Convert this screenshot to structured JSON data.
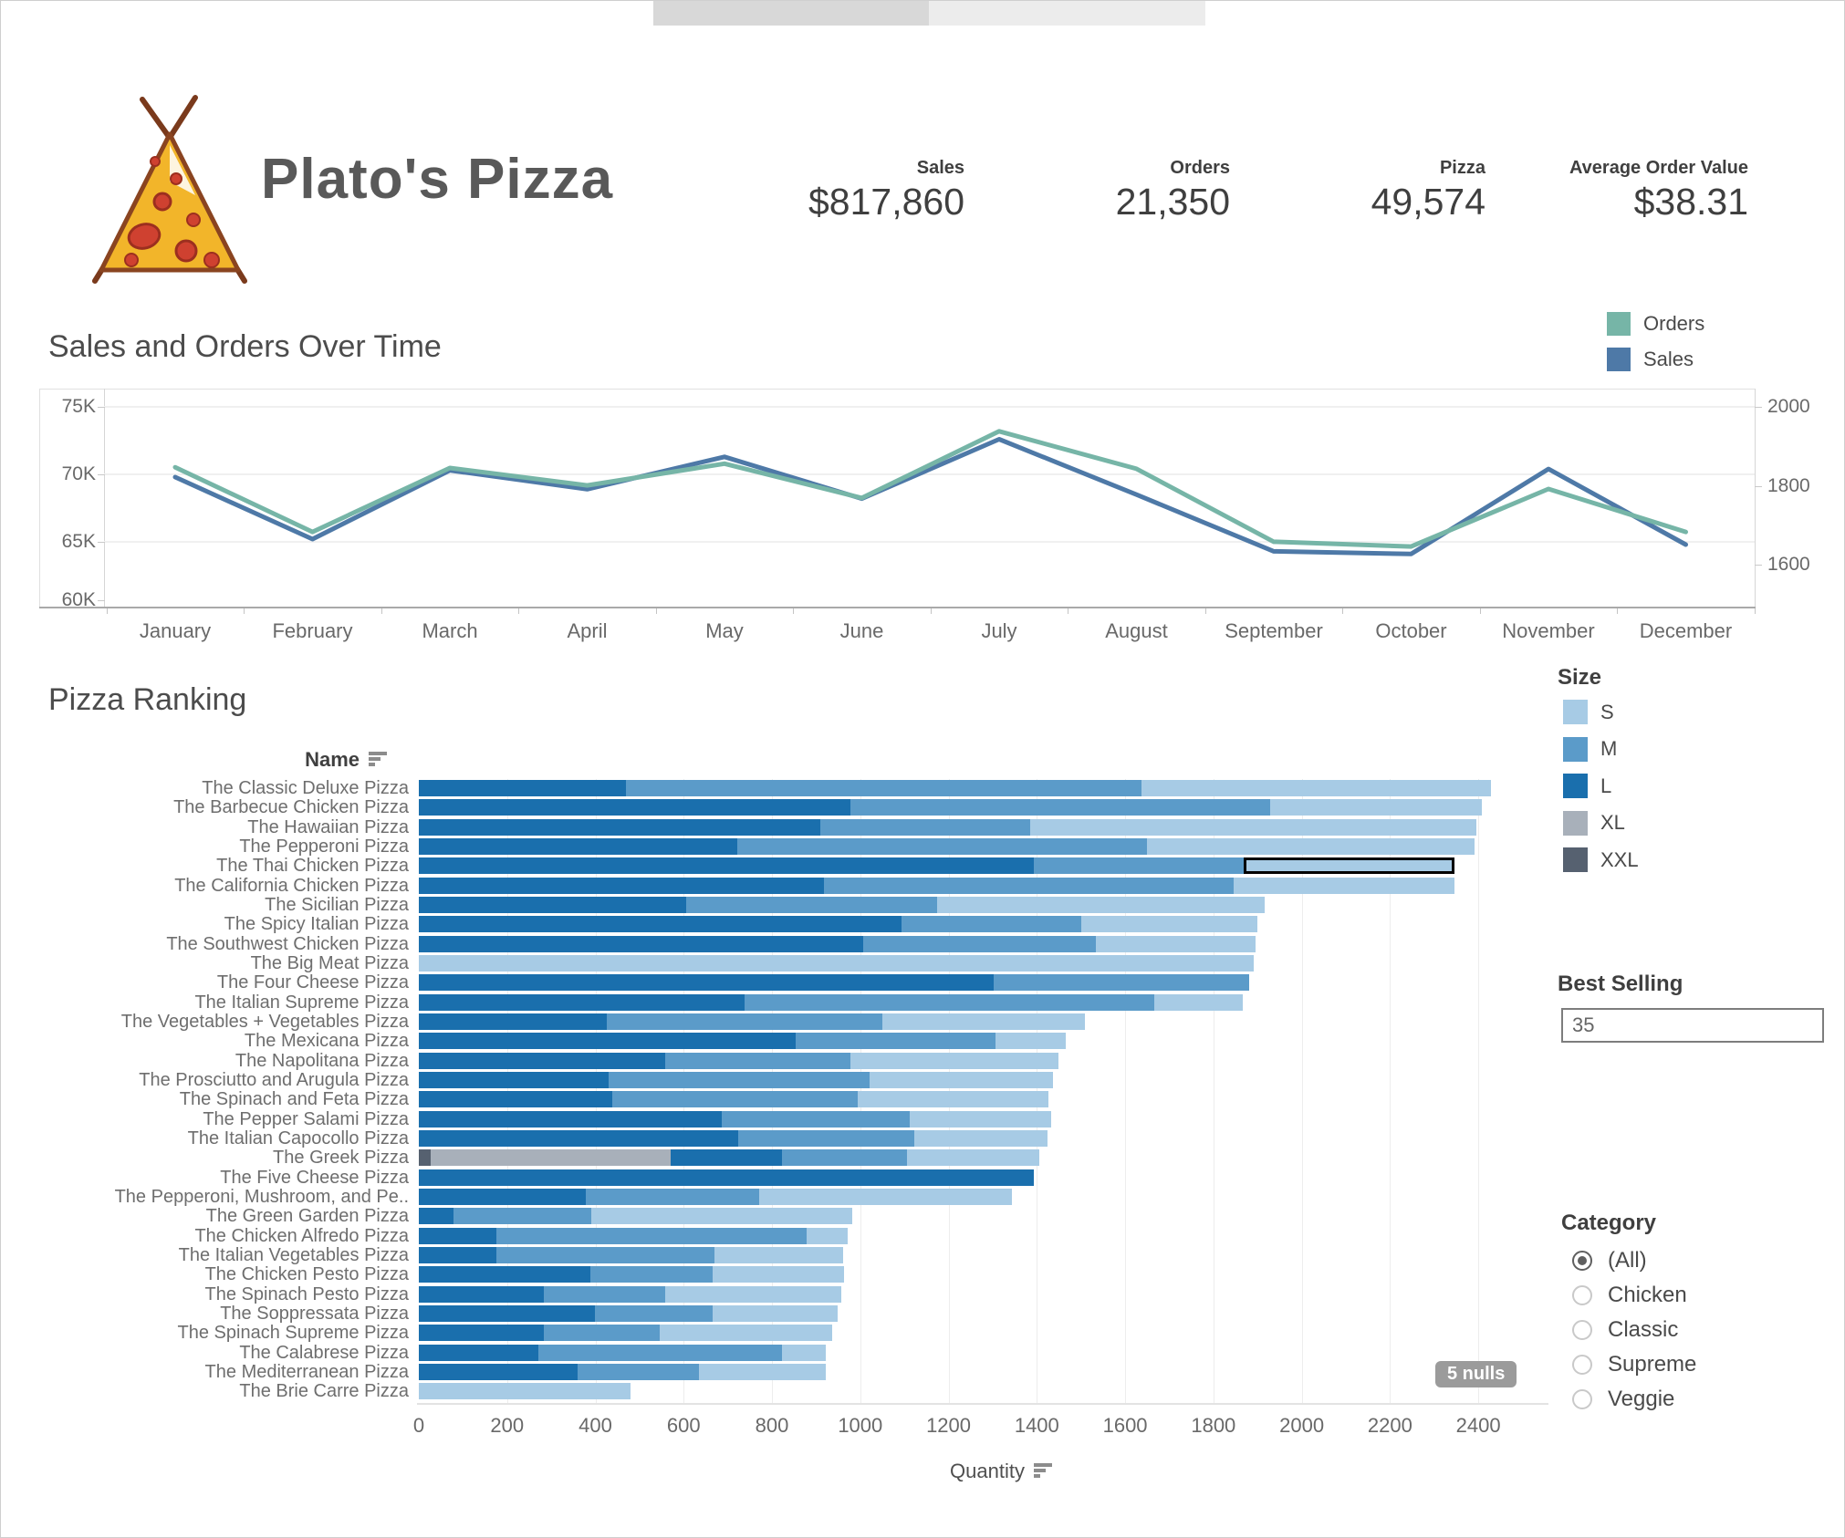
{
  "colors": {
    "size_S": "#a7cbe5",
    "size_M": "#5b9bc9",
    "size_L": "#1a6fad",
    "size_XL": "#a8b0ba",
    "size_XXL": "#566170",
    "orders_line": "#76b5a7",
    "sales_line": "#4e79a7",
    "highlight_border": "#000000",
    "badge_bg": "#9b9b9b"
  },
  "header": {
    "title": "Plato's Pizza",
    "kpis": [
      {
        "label": "Sales",
        "value": "$817,860"
      },
      {
        "label": "Orders",
        "value": "21,350"
      },
      {
        "label": "Pizza",
        "value": "49,574"
      },
      {
        "label": "Average Order Value",
        "value": "$38.31"
      }
    ]
  },
  "line_legend": [
    {
      "label": "Orders",
      "color": "#76b5a7"
    },
    {
      "label": "Sales",
      "color": "#4e79a7"
    }
  ],
  "ranking": {
    "title": "Pizza Ranking",
    "name_header": "Name",
    "xlabel": "Quantity",
    "nulls_badge": "5 nulls"
  },
  "filters": {
    "best_selling": {
      "label": "Best Selling",
      "value": "35"
    },
    "category": {
      "label": "Category",
      "options": [
        "(All)",
        "Chicken",
        "Classic",
        "Supreme",
        "Veggie"
      ],
      "selected": "(All)"
    },
    "size_legend": {
      "label": "Size",
      "items": [
        {
          "label": "S",
          "color": "#a7cbe5"
        },
        {
          "label": "M",
          "color": "#5b9bc9"
        },
        {
          "label": "L",
          "color": "#1a6fad"
        },
        {
          "label": "XL",
          "color": "#a8b0ba"
        },
        {
          "label": "XXL",
          "color": "#566170"
        }
      ]
    }
  },
  "chart_data": [
    {
      "type": "line",
      "title": "Sales and Orders Over Time",
      "x": [
        "January",
        "February",
        "March",
        "April",
        "May",
        "June",
        "July",
        "August",
        "September",
        "October",
        "November",
        "December"
      ],
      "series": [
        {
          "name": "Sales",
          "axis": "left",
          "color": "#4e79a7",
          "values": [
            69800,
            65200,
            70300,
            68900,
            71300,
            68200,
            72600,
            68500,
            64300,
            64100,
            70400,
            64800
          ]
        },
        {
          "name": "Orders",
          "axis": "right",
          "color": "#76b5a7",
          "values": [
            1847,
            1683,
            1845,
            1801,
            1856,
            1769,
            1938,
            1843,
            1658,
            1646,
            1792,
            1683
          ]
        }
      ],
      "left_axis": {
        "ticks": [
          "75K",
          "70K",
          "65K",
          "60K"
        ],
        "range": [
          60000,
          77000
        ]
      },
      "right_axis": {
        "ticks": [
          "2000",
          "1800",
          "1600"
        ],
        "range": [
          1550,
          2050
        ]
      },
      "legend_position": "top-right",
      "grid": true
    },
    {
      "type": "bar",
      "orientation": "horizontal",
      "stacked": true,
      "title": "Pizza Ranking",
      "xlabel": "Quantity",
      "x_ticks": [
        0,
        200,
        400,
        600,
        800,
        1000,
        1200,
        1400,
        1600,
        1800,
        2000,
        2200,
        2400
      ],
      "x_range": [
        0,
        2400
      ],
      "categories": [
        "The Classic Deluxe Pizza",
        "The Barbecue Chicken Pizza",
        "The Hawaiian Pizza",
        "The Pepperoni Pizza",
        "The Thai Chicken Pizza",
        "The California Chicken Pizza",
        "The Sicilian Pizza",
        "The Spicy Italian Pizza",
        "The Southwest Chicken Pizza",
        "The Big Meat Pizza",
        "The Four Cheese Pizza",
        "The Italian Supreme Pizza",
        "The Vegetables + Vegetables Pizza",
        "The Mexicana Pizza",
        "The Napolitana Pizza",
        "The Prosciutto and Arugula Pizza",
        "The Spinach and Feta Pizza",
        "The Pepper Salami Pizza",
        "The Italian Capocollo Pizza",
        "The Greek Pizza",
        "The Five Cheese Pizza",
        "The Pepperoni, Mushroom, and Pe..",
        "The Green Garden Pizza",
        "The Chicken Alfredo Pizza",
        "The Italian Vegetables Pizza",
        "The Chicken Pesto Pizza",
        "The Spinach Pesto Pizza",
        "The Soppressata Pizza",
        "The Spinach Supreme Pizza",
        "The Calabrese Pizza",
        "The Mediterranean Pizza",
        "The Brie Carre Pizza"
      ],
      "series": [
        {
          "name": "XXL",
          "color": "#566170",
          "values": [
            0,
            0,
            0,
            0,
            0,
            0,
            0,
            0,
            0,
            0,
            0,
            0,
            0,
            0,
            0,
            0,
            0,
            0,
            0,
            27,
            0,
            0,
            0,
            0,
            0,
            0,
            0,
            0,
            0,
            0,
            0,
            0
          ]
        },
        {
          "name": "XL",
          "color": "#a8b0ba",
          "values": [
            0,
            0,
            0,
            0,
            0,
            0,
            0,
            0,
            0,
            0,
            0,
            0,
            0,
            0,
            0,
            0,
            0,
            0,
            0,
            543,
            0,
            0,
            0,
            0,
            0,
            0,
            0,
            0,
            0,
            0,
            0,
            0
          ]
        },
        {
          "name": "L",
          "color": "#1a6fad",
          "values": [
            469,
            978,
            909,
            721,
            1393,
            918,
            606,
            1093,
            1007,
            0,
            1302,
            738,
            426,
            854,
            558,
            430,
            438,
            686,
            723,
            253,
            1393,
            378,
            79,
            176,
            176,
            389,
            283,
            399,
            283,
            271,
            360,
            0
          ]
        },
        {
          "name": "M",
          "color": "#5b9bc9",
          "values": [
            1168,
            951,
            476,
            929,
            475,
            928,
            568,
            408,
            527,
            0,
            579,
            928,
            624,
            452,
            420,
            591,
            556,
            426,
            399,
            283,
            0,
            393,
            312,
            703,
            494,
            277,
            275,
            267,
            263,
            552,
            275,
            0
          ]
        },
        {
          "name": "S",
          "color": "#a7cbe5",
          "values": [
            792,
            479,
            1010,
            742,
            478,
            500,
            742,
            399,
            361,
            1891,
            0,
            201,
            459,
            160,
            471,
            416,
            432,
            320,
            302,
            300,
            0,
            573,
            591,
            93,
            291,
            297,
            399,
            283,
            390,
            99,
            287,
            480
          ]
        }
      ],
      "highlight": {
        "category": "The Thai Chicken Pizza",
        "series": "S"
      },
      "annotations": [
        "5 nulls"
      ],
      "legend": [
        "S",
        "M",
        "L",
        "XL",
        "XXL"
      ]
    }
  ]
}
